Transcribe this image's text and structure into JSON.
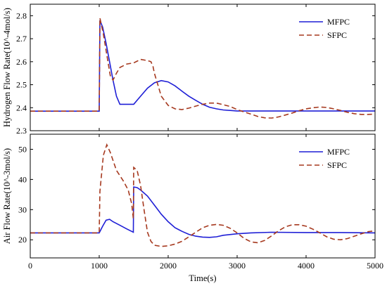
{
  "colors": {
    "mfpc": "#1f1fd6",
    "sfpc": "#a6391f",
    "axis": "#000000"
  },
  "x_axis_label": "Time(s)",
  "chart_data": [
    {
      "type": "line",
      "ylabel": "Hydrogen Flow Rate(10^-4mol/s)",
      "xlabel": "",
      "xlim": [
        0,
        5000
      ],
      "ylim": [
        2.3,
        2.85
      ],
      "x_ticks": [
        "0",
        "1000",
        "2000",
        "3000",
        "4000",
        "5000"
      ],
      "x_tick_values": [
        0,
        1000,
        2000,
        3000,
        4000,
        5000
      ],
      "y_ticks": [
        "2.3",
        "2.4",
        "2.5",
        "2.6",
        "2.7",
        "2.8"
      ],
      "y_tick_values": [
        2.3,
        2.4,
        2.5,
        2.6,
        2.7,
        2.8
      ],
      "legend_position": "top-right",
      "series": [
        {
          "name": "MFPC",
          "style": "solid",
          "x": [
            0,
            995,
            1000,
            1010,
            1050,
            1100,
            1150,
            1200,
            1250,
            1300,
            1400,
            1500,
            1600,
            1700,
            1800,
            1900,
            2000,
            2100,
            2200,
            2300,
            2400,
            2500,
            2600,
            2700,
            2800,
            2900,
            3000,
            3200,
            3500,
            4000,
            4500,
            5000
          ],
          "y": [
            2.385,
            2.385,
            2.385,
            2.78,
            2.75,
            2.68,
            2.6,
            2.52,
            2.45,
            2.415,
            2.415,
            2.415,
            2.45,
            2.485,
            2.508,
            2.518,
            2.512,
            2.495,
            2.472,
            2.45,
            2.432,
            2.415,
            2.402,
            2.395,
            2.39,
            2.388,
            2.386,
            2.386,
            2.386,
            2.386,
            2.386,
            2.386
          ]
        },
        {
          "name": "SFPC",
          "style": "dashed",
          "x": [
            0,
            995,
            1000,
            1010,
            1060,
            1110,
            1160,
            1200,
            1250,
            1300,
            1400,
            1500,
            1600,
            1700,
            1750,
            1780,
            1800,
            1850,
            1900,
            2000,
            2100,
            2200,
            2300,
            2400,
            2500,
            2600,
            2700,
            2800,
            2900,
            3000,
            3100,
            3200,
            3300,
            3400,
            3500,
            3600,
            3700,
            3800,
            3900,
            4000,
            4100,
            4200,
            4300,
            4400,
            4500,
            4600,
            4700,
            4800,
            4900,
            5000
          ],
          "y": [
            2.385,
            2.385,
            2.385,
            2.79,
            2.72,
            2.63,
            2.54,
            2.52,
            2.55,
            2.575,
            2.59,
            2.595,
            2.61,
            2.605,
            2.6,
            2.58,
            2.55,
            2.5,
            2.45,
            2.41,
            2.395,
            2.392,
            2.398,
            2.407,
            2.415,
            2.42,
            2.42,
            2.413,
            2.405,
            2.392,
            2.382,
            2.372,
            2.362,
            2.356,
            2.355,
            2.36,
            2.368,
            2.377,
            2.387,
            2.395,
            2.4,
            2.403,
            2.401,
            2.395,
            2.388,
            2.38,
            2.374,
            2.371,
            2.371,
            2.372
          ]
        }
      ]
    },
    {
      "type": "line",
      "ylabel": "Air Flow Rate(10^-3mol/s)",
      "xlabel": "Time(s)",
      "xlim": [
        0,
        5000
      ],
      "ylim": [
        14,
        55
      ],
      "x_ticks": [
        "0",
        "1000",
        "2000",
        "3000",
        "4000",
        "5000"
      ],
      "x_tick_values": [
        0,
        1000,
        2000,
        3000,
        4000,
        5000
      ],
      "y_ticks": [
        "20",
        "30",
        "40",
        "50"
      ],
      "y_tick_values": [
        20,
        30,
        40,
        50
      ],
      "legend_position": "top-right",
      "series": [
        {
          "name": "MFPC",
          "style": "solid",
          "x": [
            0,
            995,
            1000,
            1050,
            1100,
            1150,
            1200,
            1300,
            1400,
            1495,
            1500,
            1550,
            1600,
            1700,
            1800,
            1900,
            2000,
            2100,
            2200,
            2300,
            2400,
            2500,
            2600,
            2700,
            2800,
            3000,
            3200,
            3500,
            4000,
            4500,
            5000
          ],
          "y": [
            22.3,
            22.3,
            22.3,
            24.5,
            26.5,
            26.8,
            26.0,
            24.8,
            23.6,
            22.5,
            37.5,
            37.3,
            36.5,
            34.5,
            31.5,
            28.5,
            26.0,
            24.0,
            22.8,
            21.8,
            21.2,
            20.9,
            20.8,
            21.0,
            21.5,
            22.0,
            22.3,
            22.5,
            22.4,
            22.4,
            22.3
          ]
        },
        {
          "name": "SFPC",
          "style": "dashed",
          "x": [
            0,
            995,
            1000,
            1010,
            1060,
            1110,
            1160,
            1250,
            1350,
            1420,
            1470,
            1495,
            1500,
            1550,
            1600,
            1650,
            1700,
            1750,
            1800,
            1900,
            2000,
            2100,
            2200,
            2300,
            2400,
            2500,
            2600,
            2700,
            2800,
            2900,
            3000,
            3100,
            3200,
            3300,
            3400,
            3500,
            3600,
            3700,
            3800,
            3900,
            4000,
            4100,
            4200,
            4300,
            4400,
            4500,
            4600,
            4700,
            4800,
            4900,
            5000
          ],
          "y": [
            22.3,
            22.3,
            22.3,
            36.0,
            48.0,
            51.5,
            49.0,
            43.0,
            39.5,
            36.5,
            32.0,
            27.0,
            44.0,
            43.0,
            38.0,
            30.0,
            22.5,
            19.5,
            18.2,
            17.8,
            18.0,
            18.6,
            19.5,
            21.0,
            22.5,
            24.0,
            24.8,
            25.1,
            24.8,
            23.8,
            22.3,
            20.5,
            19.3,
            19.0,
            19.8,
            21.3,
            23.0,
            24.3,
            25.0,
            25.0,
            24.5,
            23.5,
            22.3,
            21.0,
            20.2,
            20.0,
            20.4,
            21.2,
            22.0,
            22.7,
            23.0
          ]
        }
      ]
    }
  ]
}
